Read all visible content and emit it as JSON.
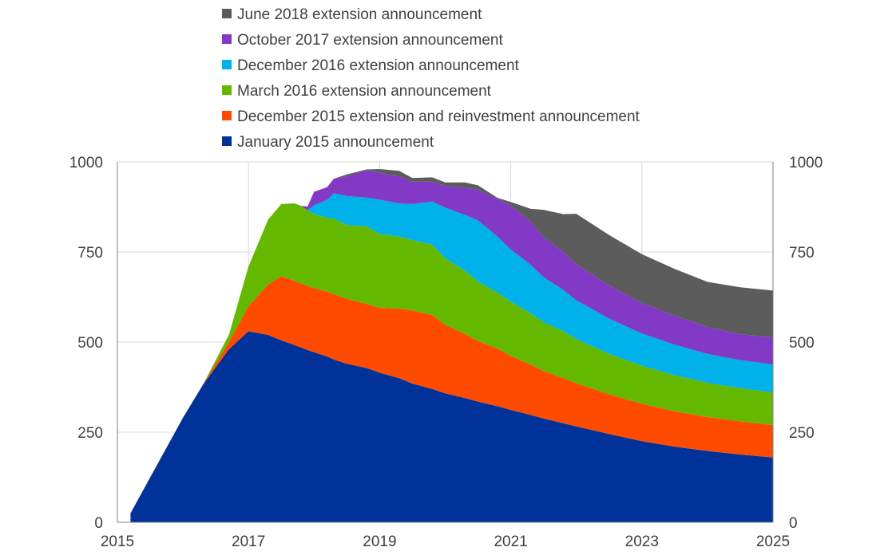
{
  "chart_data": {
    "type": "area",
    "stacked": true,
    "x_axis": {
      "range": [
        2015,
        2025
      ],
      "ticks": [
        2015,
        2017,
        2019,
        2021,
        2023,
        2025
      ]
    },
    "y_axis": {
      "range": [
        0,
        1000
      ],
      "ticks": [
        0,
        250,
        500,
        750,
        1000
      ],
      "mirrored_right": true
    },
    "grid": {
      "vertical": true,
      "horizontal": true
    },
    "legend": {
      "position": "top",
      "order": "reverse of stacking"
    },
    "x": [
      2015.2,
      2016.0,
      2016.3,
      2016.7,
      2017.0,
      2017.3,
      2017.5,
      2017.7,
      2017.8,
      2017.9,
      2018.0,
      2018.2,
      2018.3,
      2018.5,
      2018.8,
      2019.0,
      2019.3,
      2019.5,
      2019.8,
      2020.0,
      2020.3,
      2020.5,
      2020.8,
      2021.0,
      2021.3,
      2021.5,
      2021.8,
      2022.0,
      2022.5,
      2023.0,
      2023.5,
      2024.0,
      2024.5,
      2025.0
    ],
    "series": [
      {
        "name": "January 2015 announcement",
        "color": "#003299",
        "values": [
          25,
          290,
          380,
          480,
          530,
          520,
          505,
          492,
          485,
          478,
          472,
          460,
          452,
          440,
          428,
          415,
          400,
          385,
          370,
          358,
          345,
          335,
          322,
          312,
          298,
          288,
          275,
          266,
          245,
          225,
          210,
          198,
          188,
          180
        ]
      },
      {
        "name": "December 2015 extension and reinvestment announcement",
        "color": "#ff4b00",
        "values": [
          0,
          0,
          0,
          20,
          70,
          140,
          178,
          178,
          178,
          178,
          178,
          180,
          181,
          180,
          178,
          180,
          193,
          203,
          205,
          190,
          178,
          168,
          160,
          150,
          140,
          132,
          125,
          120,
          110,
          104,
          98,
          94,
          92,
          90
        ]
      },
      {
        "name": "March 2016 extension announcement",
        "color": "#65b800",
        "values": [
          0,
          0,
          0,
          20,
          110,
          180,
          200,
          215,
          215,
          210,
          205,
          205,
          210,
          205,
          215,
          205,
          200,
          195,
          195,
          185,
          175,
          165,
          155,
          150,
          142,
          135,
          130,
          122,
          112,
          105,
          100,
          95,
          92,
          90
        ]
      },
      {
        "name": "December 2016 extension announcement",
        "color": "#00b1ea",
        "values": [
          0,
          0,
          0,
          0,
          0,
          0,
          0,
          0,
          0,
          0,
          25,
          50,
          70,
          80,
          80,
          95,
          92,
          100,
          120,
          140,
          155,
          170,
          155,
          145,
          135,
          125,
          115,
          108,
          98,
          90,
          85,
          80,
          78,
          78
        ]
      },
      {
        "name": "October 2017 extension announcement",
        "color": "#8139c6",
        "values": [
          0,
          0,
          0,
          0,
          0,
          0,
          0,
          0,
          0,
          10,
          37,
          35,
          40,
          55,
          75,
          75,
          75,
          62,
          55,
          60,
          75,
          85,
          105,
          122,
          120,
          112,
          105,
          100,
          92,
          85,
          80,
          75,
          72,
          75
        ]
      },
      {
        "name": "June 2018 extension announcement",
        "color": "#5c5c5c",
        "values": [
          0,
          0,
          0,
          0,
          0,
          0,
          0,
          0,
          0,
          0,
          0,
          0,
          0,
          5,
          3,
          10,
          15,
          10,
          12,
          10,
          15,
          12,
          3,
          10,
          35,
          75,
          105,
          140,
          140,
          135,
          130,
          125,
          130,
          130
        ]
      }
    ]
  }
}
